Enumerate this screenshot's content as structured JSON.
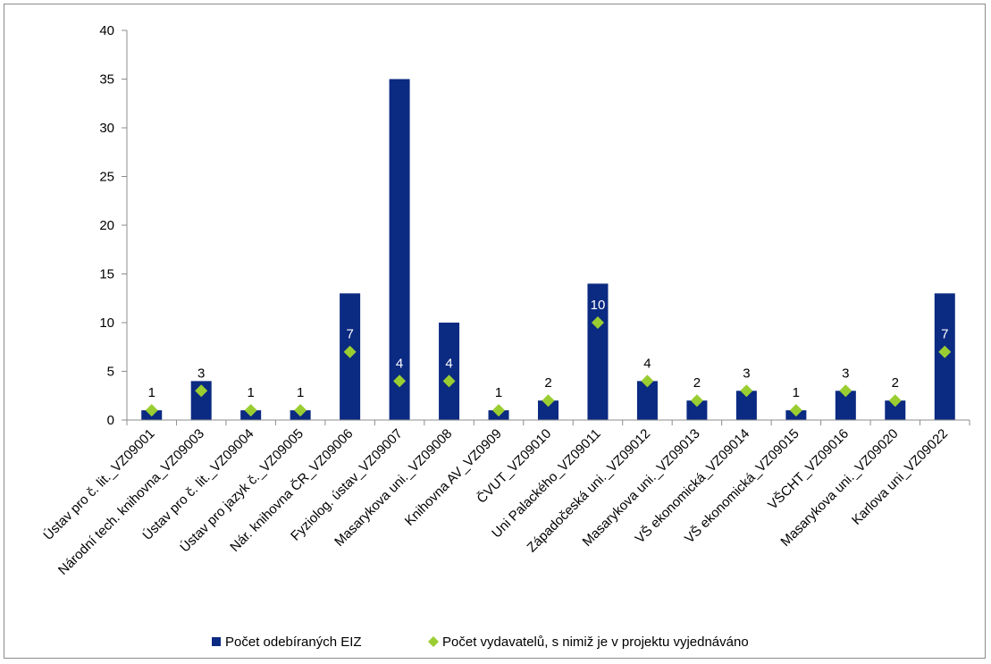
{
  "chart_data": {
    "type": "bar",
    "categories": [
      "Ústav pro č. lit._VZ09001",
      "Národní tech. knihovna_VZ09003",
      "Ústav pro č. lit._VZ09004",
      "Ústav pro jazyk č._VZ09005",
      "Nár. knihovna ČR_VZ09006",
      "Fyziolog. ústav_VZ09007",
      "Masarykova uni._VZ09008",
      "Knihovna AV_VZ0909",
      "ČVUT_VZ09010",
      "Uni Palackého_VZ09011",
      "Západočeská uni._VZ09012",
      "Masarykova uni._VZ09013",
      "VŠ ekonomická_VZ09014",
      "VŠ ekonomická_VZ09015",
      "VŠCHT_VZ09016",
      "Masarykova uni._VZ09020",
      "Karlova uni_VZ09022"
    ],
    "series": [
      {
        "name": "Počet odebíraných EIZ",
        "kind": "bar",
        "color": "#0b2a82",
        "values": [
          1,
          4,
          1,
          1,
          13,
          35,
          10,
          1,
          2,
          14,
          4,
          2,
          3,
          1,
          3,
          2,
          13
        ]
      },
      {
        "name": "Počet vydavatelů, s nimiž je v projektu vyjednáváno",
        "kind": "marker",
        "color": "#9acd32",
        "values": [
          1,
          3,
          1,
          1,
          7,
          4,
          4,
          1,
          2,
          10,
          4,
          2,
          3,
          1,
          3,
          2,
          7
        ]
      }
    ],
    "yticks": [
      0,
      5,
      10,
      15,
      20,
      25,
      30,
      35,
      40
    ],
    "ylim": [
      0,
      40
    ],
    "title": "",
    "xlabel": "",
    "ylabel": "",
    "grid": false,
    "legend_position": "bottom"
  }
}
